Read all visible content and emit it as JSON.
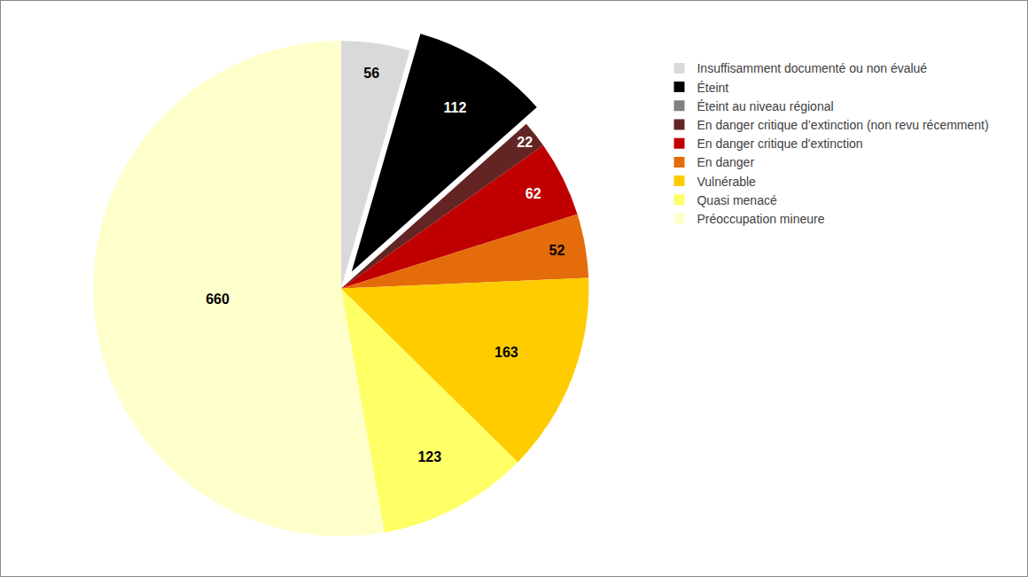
{
  "chart_data": {
    "type": "pie",
    "categories": [
      "Insuffisamment documenté ou non évalué",
      "Éteint",
      "Éteint au niveau régional",
      "En danger critique d’extinction (non revu récemment)",
      "En danger critique d'extinction",
      "En danger",
      "Vulnérable",
      "Quasi menacé",
      "Préoccupation mineure"
    ],
    "values": [
      56,
      112,
      0,
      22,
      62,
      52,
      163,
      123,
      660
    ],
    "colors": [
      "#d9d9d9",
      "#000000",
      "#808080",
      "#632523",
      "#c00000",
      "#e46c0a",
      "#ffcc00",
      "#ffff66",
      "#ffffcc"
    ],
    "data_labels": true,
    "legend": "right"
  }
}
